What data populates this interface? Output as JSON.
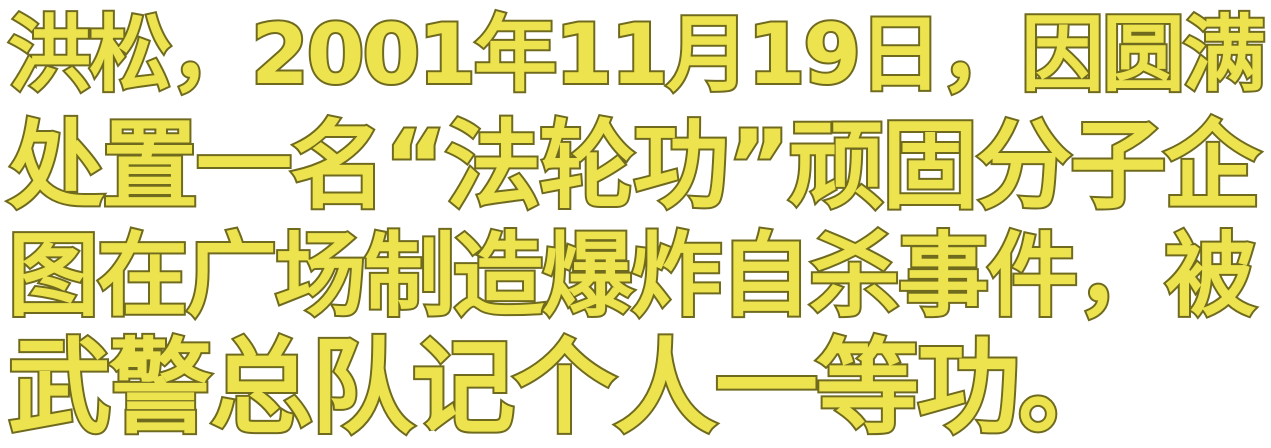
{
  "caption": {
    "lines": [
      "洪松，2001年11月19日，因圆满",
      "处置一名“法轮功”顽固分子企",
      "图在广场制造爆炸自杀事件，被",
      "武警总队记个人一等功。"
    ]
  },
  "colors": {
    "text_fill": "#ece34e",
    "text_outline": "#6f6a1e",
    "background": "#ffffff"
  }
}
